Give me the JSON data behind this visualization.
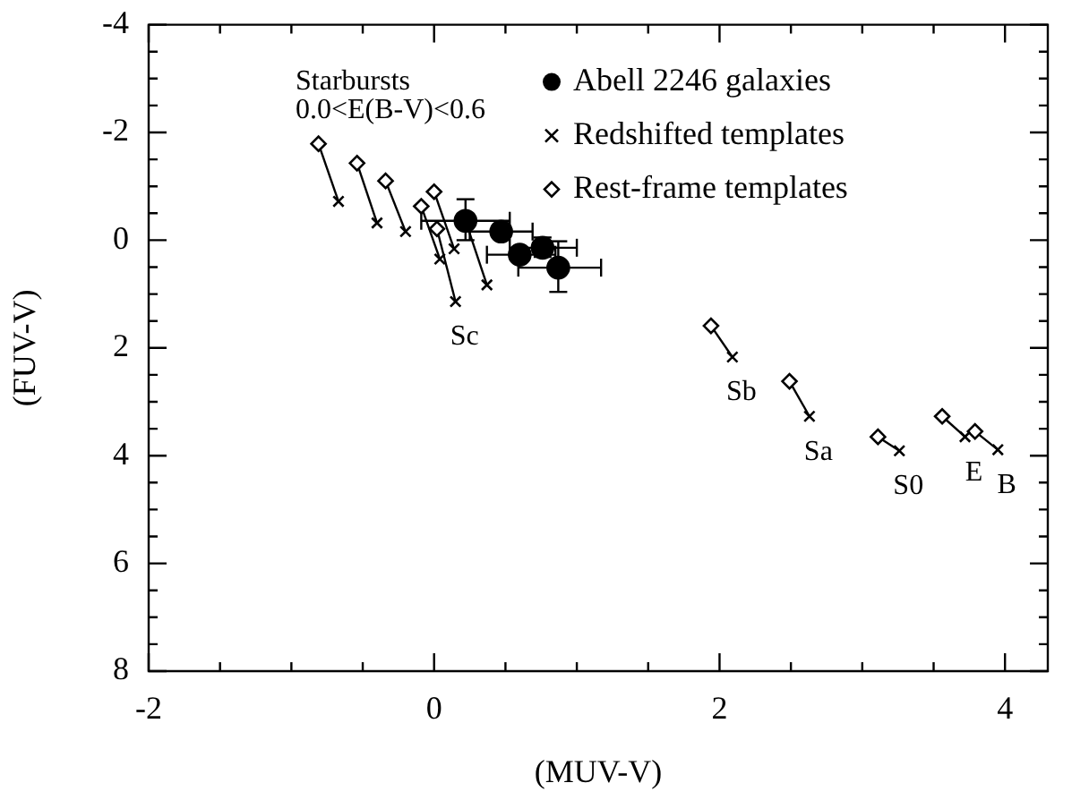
{
  "chart_data": {
    "type": "scatter",
    "xlabel": "(MUV-V)",
    "ylabel": "(FUV-V)",
    "xlim": [
      -2,
      4.3
    ],
    "ylim": [
      8,
      -4
    ],
    "xticks": [
      -2,
      {
        "value": -1.5,
        "label": null
      },
      {
        "value": -1,
        "label": null
      },
      {
        "value": -0.5,
        "label": null
      },
      0,
      {
        "value": 0.5,
        "label": null
      },
      {
        "value": 1,
        "label": null
      },
      {
        "value": 1.5,
        "label": null
      },
      2,
      {
        "value": 2.5,
        "label": null
      },
      {
        "value": 3,
        "label": null
      },
      {
        "value": 3.5,
        "label": null
      },
      4
    ],
    "yticks": [
      -4,
      {
        "value": -3.5,
        "label": null
      },
      {
        "value": -3,
        "label": null
      },
      {
        "value": -2.5,
        "label": null
      },
      -2,
      {
        "value": -1.5,
        "label": null
      },
      {
        "value": -1,
        "label": null
      },
      {
        "value": -0.5,
        "label": null
      },
      0,
      {
        "value": 0.5,
        "label": null
      },
      {
        "value": 1,
        "label": null
      },
      {
        "value": 1.5,
        "label": null
      },
      2,
      {
        "value": 2.5,
        "label": null
      },
      {
        "value": 3,
        "label": null
      },
      {
        "value": 3.5,
        "label": null
      },
      4,
      {
        "value": 4.5,
        "label": null
      },
      {
        "value": 5,
        "label": null
      },
      {
        "value": 5.5,
        "label": null
      },
      6,
      {
        "value": 6.5,
        "label": null
      },
      {
        "value": 7,
        "label": null
      },
      {
        "value": 7.5,
        "label": null
      },
      8
    ],
    "legend": "top right",
    "line_style": "solid",
    "annotations": [
      "Starbursts",
      "0.0<E(B-V)<0.6",
      {
        "text": "Sc",
        "x": 0.15,
        "y": 1.14
      },
      {
        "text": "Sb",
        "x": 2.09,
        "y": 2.17
      },
      {
        "text": "Sa",
        "x": 2.63,
        "y": 3.27
      },
      {
        "text": "S0",
        "x": 3.26,
        "y": 3.91
      },
      {
        "text": "E",
        "x": 3.72,
        "y": 3.65
      },
      {
        "text": "B",
        "x": 3.95,
        "y": 3.89
      }
    ],
    "series": [
      {
        "name": "Abell 2246 galaxies",
        "type": "scatter",
        "marker": "circle",
        "color": "#000000",
        "x": [
          0.22,
          0.47,
          0.6,
          0.76,
          0.87
        ],
        "values": [
          -0.36,
          -0.16,
          0.27,
          0.14,
          0.51
        ],
        "errors": [
          [
            -0.76,
            0.0
          ],
          null,
          null,
          [
            -0.05,
            0.31
          ],
          [
            0.02,
            0.96
          ]
        ],
        "xerrors": [
          [
            -0.09,
            0.53
          ],
          [
            0.25,
            0.69
          ],
          [
            0.37,
            0.85
          ],
          [
            0.53,
            1.0
          ],
          [
            0.59,
            1.17
          ]
        ]
      },
      {
        "name": "Redshifted templates",
        "type": "scatter",
        "marker": "cross",
        "color": "#000000",
        "x": [
          -0.67,
          -0.4,
          -0.2,
          0.14,
          0.04,
          0.15,
          0.37,
          2.09,
          2.63,
          3.26,
          3.72,
          3.95
        ],
        "values": [
          -0.72,
          -0.32,
          -0.16,
          0.16,
          0.35,
          1.14,
          0.83,
          2.17,
          3.27,
          3.91,
          3.65,
          3.89
        ]
      },
      {
        "name": "Rest-frame templates",
        "type": "scatter",
        "marker": "diamond",
        "color": "#000000",
        "x": [
          -0.81,
          -0.54,
          -0.34,
          0.0,
          -0.09,
          0.02,
          1.94,
          2.49,
          3.11,
          3.56,
          3.79
        ],
        "values": [
          -1.79,
          -1.43,
          -1.1,
          -0.9,
          -0.63,
          -0.21,
          1.59,
          2.62,
          3.65,
          3.27,
          3.55
        ]
      },
      {
        "type": "line",
        "marker": "none",
        "color": "#000000",
        "x": [
          -0.81,
          -0.67
        ],
        "values": [
          -1.79,
          -0.72
        ]
      },
      {
        "type": "line",
        "marker": "none",
        "color": "#000000",
        "x": [
          -0.54,
          -0.4
        ],
        "values": [
          -1.43,
          -0.32
        ]
      },
      {
        "type": "line",
        "marker": "none",
        "color": "#000000",
        "x": [
          -0.34,
          -0.2
        ],
        "values": [
          -1.1,
          -0.16
        ]
      },
      {
        "type": "line",
        "marker": "none",
        "color": "#000000",
        "x": [
          0.0,
          0.14
        ],
        "values": [
          -0.9,
          0.16
        ]
      },
      {
        "type": "line",
        "marker": "none",
        "color": "#000000",
        "x": [
          -0.09,
          0.04
        ],
        "values": [
          -0.63,
          0.35
        ]
      },
      {
        "type": "line",
        "marker": "none",
        "color": "#000000",
        "x": [
          0.02,
          0.15
        ],
        "values": [
          -0.21,
          1.14
        ]
      },
      {
        "type": "line",
        "marker": "none",
        "color": "#000000",
        "x": [
          0.22,
          0.37
        ],
        "values": [
          -0.36,
          0.83
        ]
      },
      {
        "type": "line",
        "marker": "none",
        "color": "#000000",
        "x": [
          1.94,
          2.09
        ],
        "values": [
          1.59,
          2.17
        ]
      },
      {
        "type": "line",
        "marker": "none",
        "color": "#000000",
        "x": [
          2.49,
          2.63
        ],
        "values": [
          2.62,
          3.27
        ]
      },
      {
        "type": "line",
        "marker": "none",
        "color": "#000000",
        "x": [
          3.11,
          3.26
        ],
        "values": [
          3.65,
          3.91
        ]
      },
      {
        "type": "line",
        "marker": "none",
        "color": "#000000",
        "x": [
          3.56,
          3.72
        ],
        "values": [
          3.27,
          3.65
        ]
      },
      {
        "type": "line",
        "marker": "none",
        "color": "#000000",
        "x": [
          3.79,
          3.95
        ],
        "values": [
          3.55,
          3.89
        ]
      }
    ]
  }
}
